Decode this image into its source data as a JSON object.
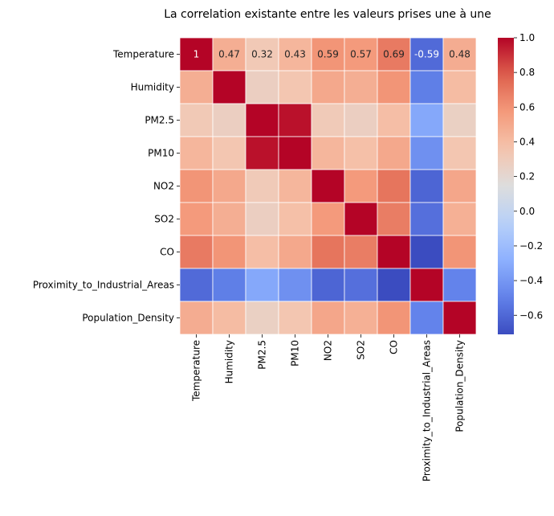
{
  "chart_data": {
    "type": "heatmap",
    "title": "La correlation existante entre les valeurs prises une à une",
    "xlabel": "",
    "ylabel": "",
    "x_categories": [
      "Temperature",
      "Humidity",
      "PM2.5",
      "PM10",
      "NO2",
      "SO2",
      "CO",
      "Proximity_to_Industrial_Areas",
      "Population_Density"
    ],
    "y_categories": [
      "Temperature",
      "Humidity",
      "PM2.5",
      "PM10",
      "NO2",
      "SO2",
      "CO",
      "Proximity_to_Industrial_Areas",
      "Population_Density"
    ],
    "values": [
      [
        1.0,
        0.47,
        0.32,
        0.43,
        0.59,
        0.57,
        0.69,
        -0.59,
        0.48
      ],
      [
        0.47,
        1.0,
        0.27,
        0.34,
        0.5,
        0.47,
        0.59,
        -0.51,
        0.4
      ],
      [
        0.32,
        0.27,
        1.0,
        0.97,
        0.31,
        0.27,
        0.39,
        -0.32,
        0.26
      ],
      [
        0.43,
        0.34,
        0.97,
        1.0,
        0.43,
        0.38,
        0.5,
        -0.43,
        0.34
      ],
      [
        0.59,
        0.5,
        0.31,
        0.43,
        1.0,
        0.57,
        0.71,
        -0.61,
        0.51
      ],
      [
        0.57,
        0.47,
        0.27,
        0.38,
        0.57,
        1.0,
        0.68,
        -0.57,
        0.46
      ],
      [
        0.69,
        0.59,
        0.39,
        0.5,
        0.71,
        0.68,
        1.0,
        -0.71,
        0.59
      ],
      [
        -0.59,
        -0.51,
        -0.32,
        -0.43,
        -0.61,
        -0.57,
        -0.71,
        1.0,
        -0.49
      ],
      [
        0.48,
        0.4,
        0.26,
        0.34,
        0.51,
        0.46,
        0.59,
        -0.49,
        1.0
      ]
    ],
    "annotated_cells": [
      {
        "row": 0,
        "col": 0,
        "text": "1"
      },
      {
        "row": 0,
        "col": 1,
        "text": "0.47"
      },
      {
        "row": 0,
        "col": 2,
        "text": "0.32"
      },
      {
        "row": 0,
        "col": 3,
        "text": "0.43"
      },
      {
        "row": 0,
        "col": 4,
        "text": "0.59"
      },
      {
        "row": 0,
        "col": 5,
        "text": "0.57"
      },
      {
        "row": 0,
        "col": 6,
        "text": "0.69"
      },
      {
        "row": 0,
        "col": 7,
        "text": "-0.59"
      },
      {
        "row": 0,
        "col": 8,
        "text": "0.48"
      }
    ],
    "colormap": "coolwarm",
    "vmin": -0.71,
    "vmax": 1.0,
    "colorbar_ticks": [
      1.0,
      0.8,
      0.6,
      0.4,
      0.2,
      0.0,
      -0.2,
      -0.4,
      -0.6
    ],
    "colorbar_tick_labels": [
      "1.0",
      "0.8",
      "0.6",
      "0.4",
      "0.2",
      "0.0",
      "−0.2",
      "−0.4",
      "−0.6"
    ],
    "grid_lines": "white"
  }
}
